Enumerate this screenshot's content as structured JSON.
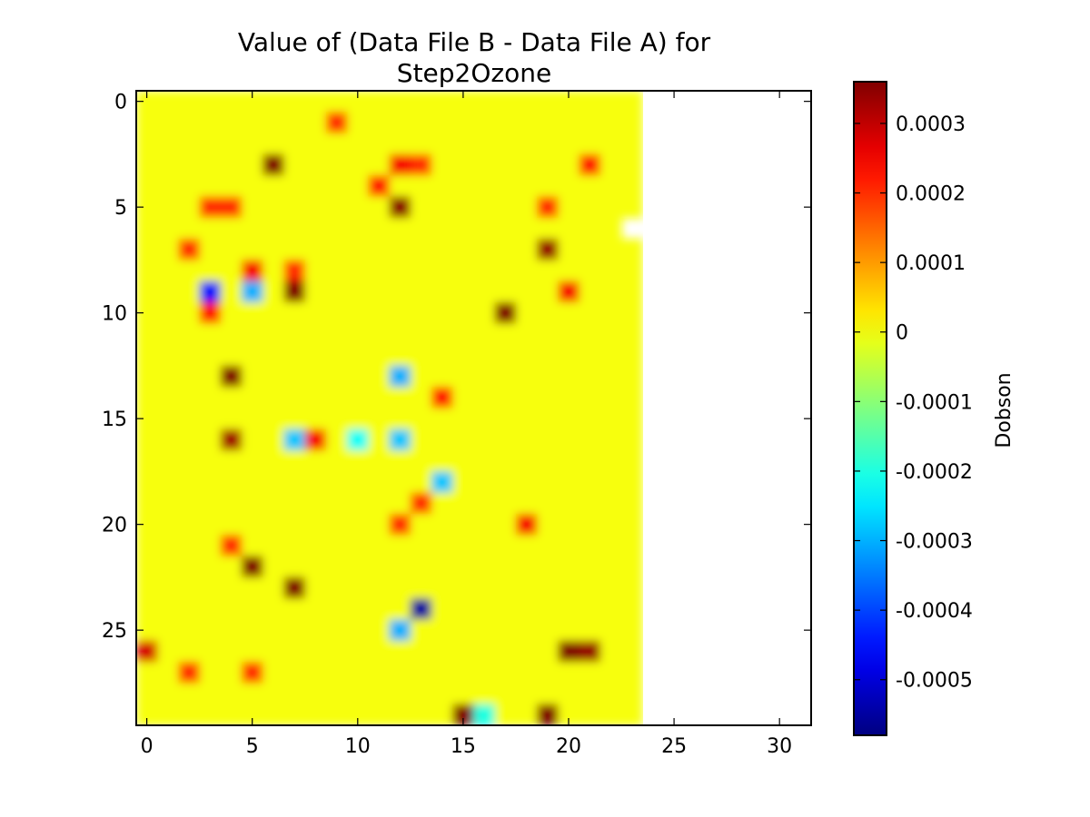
{
  "chart_data": {
    "type": "heatmap",
    "title_line1": "Value of (Data File B - Data File A) for",
    "title_line2": "Step2Ozone",
    "xlabel": "",
    "ylabel": "",
    "x_range": [
      -0.5,
      31.5
    ],
    "y_range": [
      29.5,
      -0.5
    ],
    "x_ticks": [
      0,
      5,
      10,
      15,
      20,
      25,
      30
    ],
    "y_ticks": [
      0,
      5,
      10,
      15,
      20,
      25
    ],
    "grid": false,
    "colormap": "jet",
    "colorbar": {
      "label": "Dobson",
      "vmin": -0.00058,
      "vmax": 0.00036,
      "ticks": [
        0.0003,
        0.0002,
        0.0001,
        0,
        -0.0001,
        -0.0002,
        -0.0003,
        -0.0004,
        -0.0005
      ],
      "tick_labels": [
        "0.0003",
        "0.0002",
        "0.0001",
        "0",
        "-0.0001",
        "-0.0002",
        "-0.0003",
        "-0.0004",
        "-0.0005"
      ]
    },
    "rows": 30,
    "cols": 32,
    "valid_cols": 24,
    "missing_cells": [
      [
        6,
        23
      ]
    ],
    "background_value": 0,
    "notable_cells": [
      {
        "row": 3,
        "col": 6,
        "value": 0.00036
      },
      {
        "row": 5,
        "col": 12,
        "value": 0.00035
      },
      {
        "row": 3,
        "col": 12,
        "value": 0.00025
      },
      {
        "row": 3,
        "col": 13,
        "value": 0.0002
      },
      {
        "row": 4,
        "col": 11,
        "value": 0.00022
      },
      {
        "row": 1,
        "col": 9,
        "value": 0.0002
      },
      {
        "row": 5,
        "col": 3,
        "value": 0.0002
      },
      {
        "row": 5,
        "col": 4,
        "value": 0.0002
      },
      {
        "row": 9,
        "col": 3,
        "value": -0.00045
      },
      {
        "row": 10,
        "col": 3,
        "value": 0.00022
      },
      {
        "row": 8,
        "col": 5,
        "value": 0.00025
      },
      {
        "row": 9,
        "col": 5,
        "value": -0.0003
      },
      {
        "row": 9,
        "col": 7,
        "value": 0.00036
      },
      {
        "row": 8,
        "col": 7,
        "value": 0.0002
      },
      {
        "row": 7,
        "col": 2,
        "value": 0.0002
      },
      {
        "row": 7,
        "col": 19,
        "value": 0.00034
      },
      {
        "row": 5,
        "col": 19,
        "value": 0.0002
      },
      {
        "row": 9,
        "col": 20,
        "value": 0.00025
      },
      {
        "row": 3,
        "col": 21,
        "value": 0.00022
      },
      {
        "row": 10,
        "col": 17,
        "value": 0.00036
      },
      {
        "row": 13,
        "col": 4,
        "value": 0.00036
      },
      {
        "row": 13,
        "col": 12,
        "value": -0.0003
      },
      {
        "row": 14,
        "col": 14,
        "value": 0.00022
      },
      {
        "row": 16,
        "col": 4,
        "value": 0.00033
      },
      {
        "row": 16,
        "col": 7,
        "value": -0.00028
      },
      {
        "row": 16,
        "col": 8,
        "value": 0.00025
      },
      {
        "row": 16,
        "col": 10,
        "value": -0.00022
      },
      {
        "row": 16,
        "col": 12,
        "value": -0.00028
      },
      {
        "row": 18,
        "col": 14,
        "value": -0.00028
      },
      {
        "row": 19,
        "col": 13,
        "value": 0.0002
      },
      {
        "row": 20,
        "col": 12,
        "value": 0.0002
      },
      {
        "row": 20,
        "col": 18,
        "value": 0.00025
      },
      {
        "row": 21,
        "col": 4,
        "value": 0.0002
      },
      {
        "row": 22,
        "col": 5,
        "value": 0.00036
      },
      {
        "row": 23,
        "col": 7,
        "value": 0.00036
      },
      {
        "row": 24,
        "col": 13,
        "value": -0.00055
      },
      {
        "row": 25,
        "col": 12,
        "value": -0.0003
      },
      {
        "row": 26,
        "col": 0,
        "value": 0.00028
      },
      {
        "row": 26,
        "col": 20,
        "value": 0.00036
      },
      {
        "row": 26,
        "col": 21,
        "value": 0.00034
      },
      {
        "row": 27,
        "col": 2,
        "value": 0.0002
      },
      {
        "row": 27,
        "col": 5,
        "value": 0.0002
      },
      {
        "row": 29,
        "col": 15,
        "value": 0.00036
      },
      {
        "row": 29,
        "col": 16,
        "value": -0.0002
      },
      {
        "row": 29,
        "col": 19,
        "value": 0.00036
      }
    ]
  }
}
